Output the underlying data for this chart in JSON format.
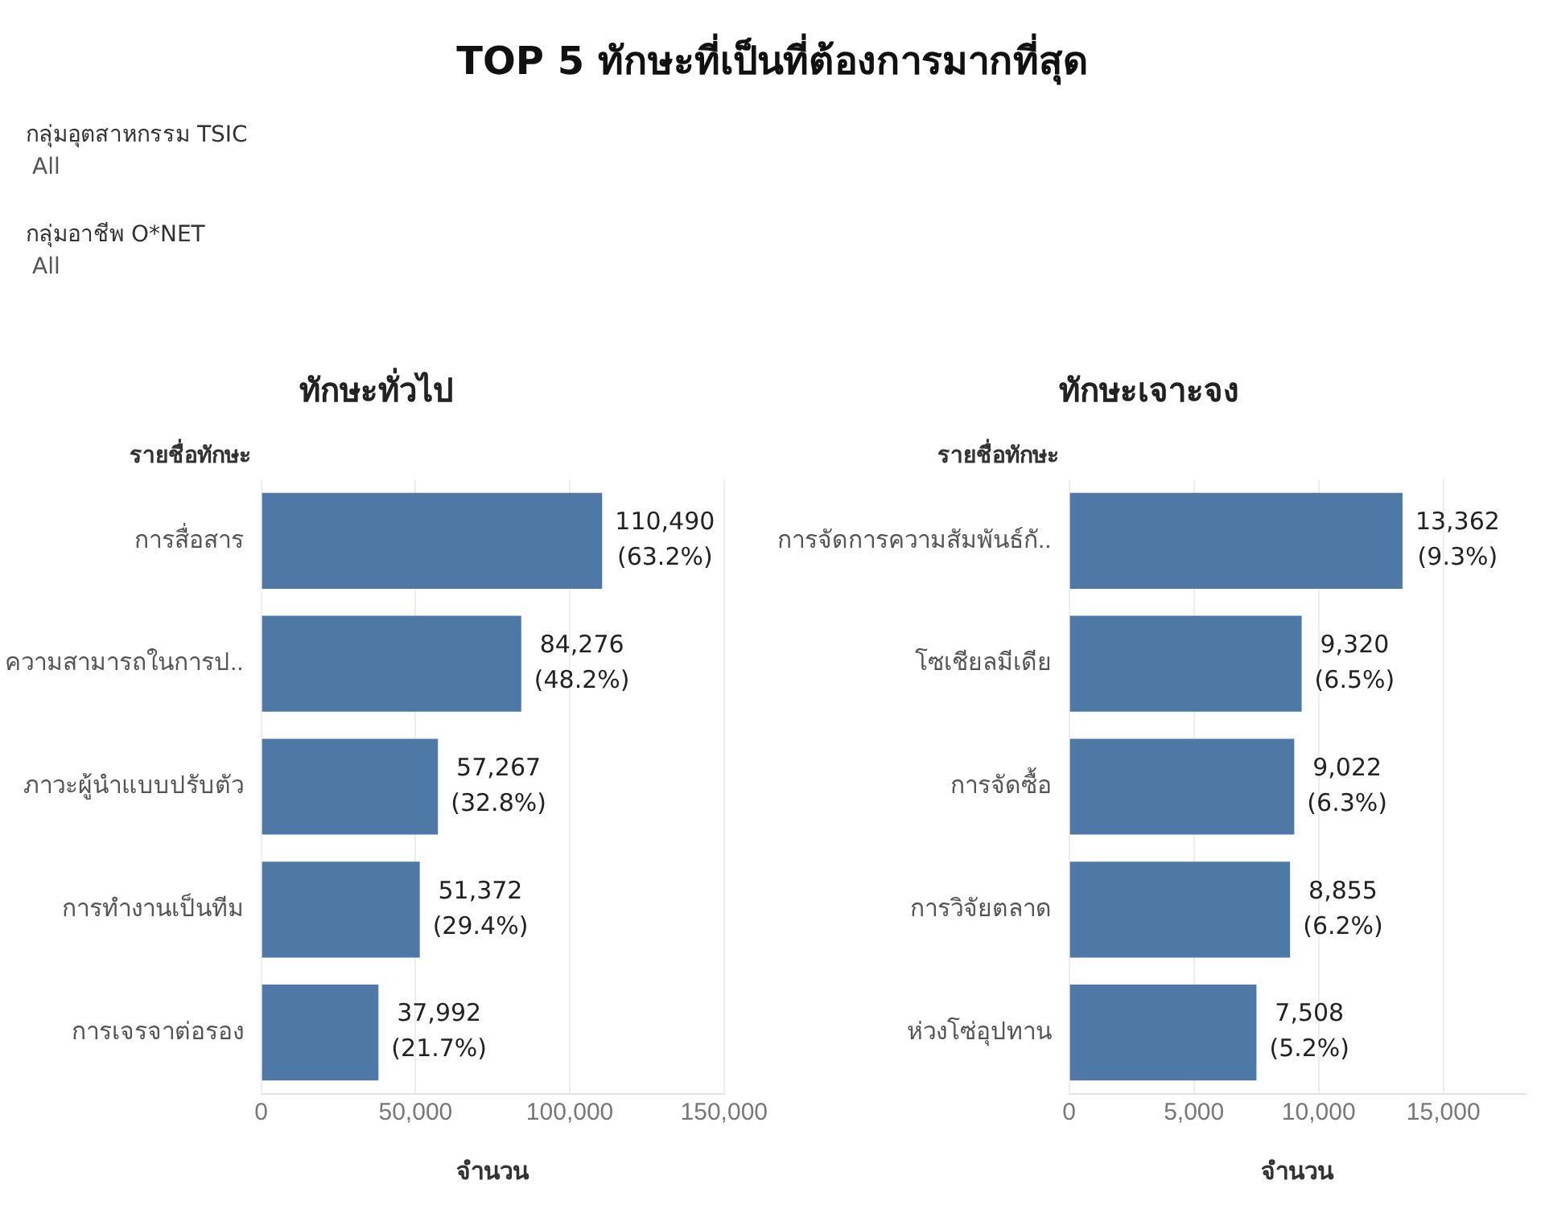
{
  "chart_data": [
    {
      "type": "bar",
      "orientation": "horizontal",
      "title": "ทักษะทั่วไป",
      "ylabel": "รายชื่อทักษะ",
      "xlabel": "จำนวน",
      "annotations": [
        "TOP 5 ทักษะที่เป็นที่ต้องการมากที่สุด",
        "กลุ่มอุตสาหกรรม TSIC",
        "All",
        "กลุ่มอาชีพ O*NET",
        "All"
      ],
      "categories": [
        "การสื่อสาร",
        "ความสามารถในการป..",
        "ภาวะผู้นำแบบปรับตัว",
        "การทำงานเป็นทีม",
        "การเจรจาต่อรอง"
      ],
      "values": [
        110490,
        84276,
        57267,
        51372,
        37992
      ],
      "value_labels": [
        "110,490\n(63.2%)",
        "84,276\n(48.2%)",
        "57,267\n(32.8%)",
        "51,372\n(29.4%)",
        "37,992\n(21.7%)"
      ],
      "color": "#4e79a7",
      "xlim": [
        0,
        150000
      ],
      "xticks": [
        {
          "value": 0,
          "label": "0"
        },
        {
          "value": 50000,
          "label": "50,000"
        },
        {
          "value": 100000,
          "label": "100,000"
        },
        {
          "value": 150000,
          "label": "150,000"
        }
      ],
      "grid": "x"
    },
    {
      "type": "bar",
      "orientation": "horizontal",
      "title": "ทักษะเจาะจง",
      "ylabel": "รายชื่อทักษะ",
      "xlabel": "จำนวน",
      "categories": [
        "การจัดการความสัมพันธ์กั..",
        "โซเชียลมีเดีย",
        "การจัดซื้อ",
        "การวิจัยตลาด",
        "ห่วงโซ่อุปทาน"
      ],
      "values": [
        13362,
        9320,
        9022,
        8855,
        7508
      ],
      "value_labels": [
        "13,362\n(9.3%)",
        "9,320\n(6.5%)",
        "9,022\n(6.3%)",
        "8,855\n(6.2%)",
        "7,508\n(5.2%)"
      ],
      "color": "#4e79a7",
      "xlim": [
        0,
        18300
      ],
      "xticks": [
        {
          "value": 0,
          "label": "0"
        },
        {
          "value": 5000,
          "label": "5,000"
        },
        {
          "value": 10000,
          "label": "10,000"
        },
        {
          "value": 15000,
          "label": "15,000"
        }
      ],
      "grid": "x"
    }
  ]
}
